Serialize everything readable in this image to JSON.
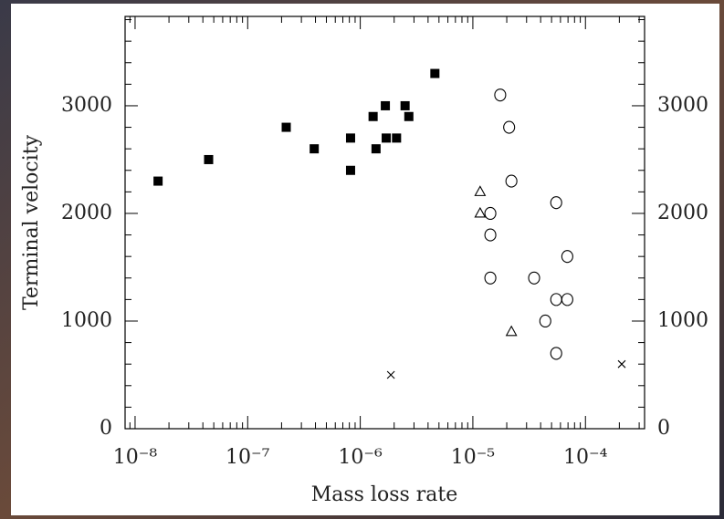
{
  "chart_data": {
    "type": "scatter",
    "x_label": "Mass loss rate",
    "y_label": "Terminal velocity",
    "xscale": "log",
    "xlim": [
      8.15e-09,
      0.000335
    ],
    "ylim": [
      0,
      3830
    ],
    "xticks": [
      {
        "value": 1e-08,
        "label": "10⁻⁸"
      },
      {
        "value": 1e-07,
        "label": "10⁻⁷"
      },
      {
        "value": 1e-06,
        "label": "10⁻⁶"
      },
      {
        "value": 1e-05,
        "label": "10⁻⁵"
      },
      {
        "value": 0.0001,
        "label": "10⁻⁴"
      }
    ],
    "yticks": [
      0,
      1000,
      2000,
      3000
    ],
    "right_axis_labels": true,
    "series": [
      {
        "marker": "filled-square",
        "color": "#000000",
        "x": [
          1.6e-08,
          4.5e-08,
          2.2e-07,
          3.9e-07,
          8.2e-07,
          8.2e-07,
          1.3e-06,
          1.38e-06,
          1.67e-06,
          1.7e-06,
          2.1e-06,
          2.5e-06,
          2.7e-06,
          4.6e-06
        ],
        "values": [
          2300,
          2500,
          2800,
          2600,
          2700,
          2400,
          2900,
          2600,
          3000,
          2700,
          2700,
          3000,
          2900,
          3300
        ]
      },
      {
        "marker": "open-circle",
        "color": "#000000",
        "x": [
          1.75e-05,
          2.1e-05,
          2.2e-05,
          1.43e-05,
          1.43e-05,
          1.43e-05,
          3.5e-05,
          4.4e-05,
          5.5e-05,
          5.5e-05,
          5.5e-05,
          6.9e-05,
          6.9e-05
        ],
        "values": [
          3100,
          2800,
          2300,
          2000,
          1800,
          1400,
          1400,
          1000,
          2100,
          1200,
          700,
          1600,
          1200
        ]
      },
      {
        "marker": "open-triangle",
        "color": "#000000",
        "x": [
          1.16e-05,
          1.16e-05,
          2.2e-05
        ],
        "values": [
          2200,
          2000,
          900
        ]
      },
      {
        "marker": "cross",
        "color": "#000000",
        "x": [
          1.87e-06,
          0.00021
        ],
        "values": [
          500,
          600
        ]
      }
    ]
  }
}
